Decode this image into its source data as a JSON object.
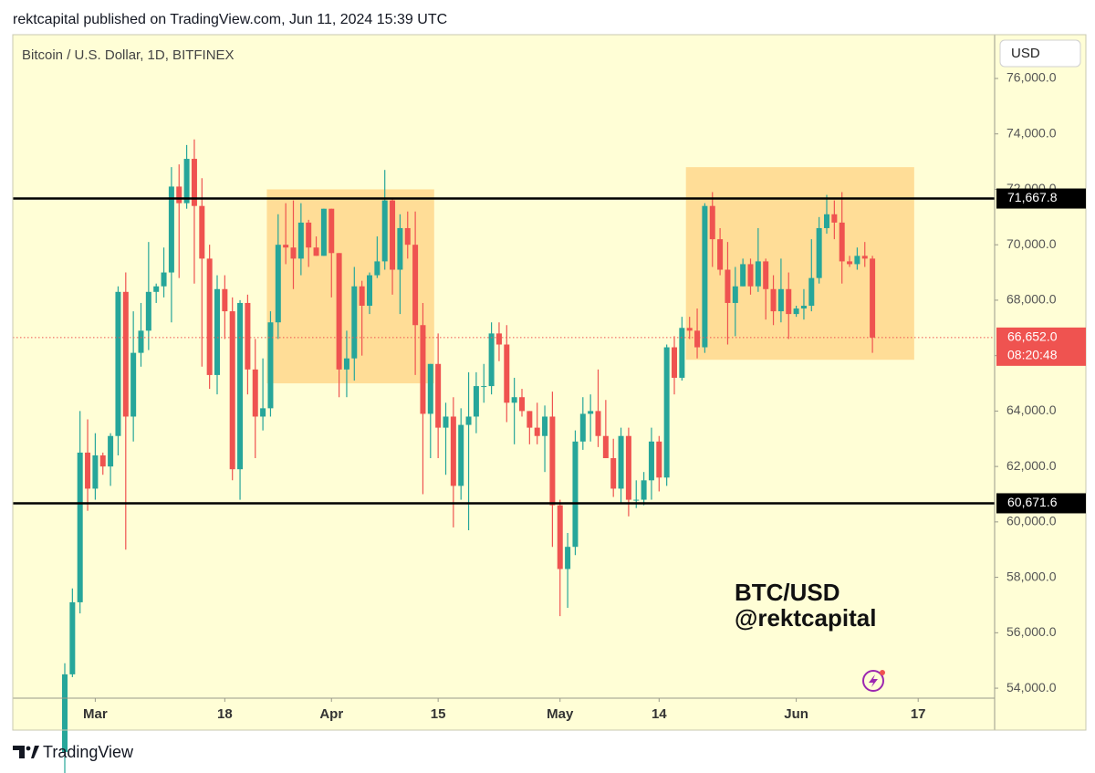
{
  "header": "rektcapital published on TradingView.com, Jun 11, 2024 15:39 UTC",
  "footer": "TradingView",
  "chart_data": {
    "type": "candlestick",
    "title": "Bitcoin / U.S. Dollar, 1D, BITFINEX",
    "currency": "USD",
    "watermark": [
      "BTC/USD",
      "@rektcapital"
    ],
    "up_color": "#26a69a",
    "down_color": "#ef5350",
    "x": [
      "02-26",
      "02-27",
      "02-28",
      "02-29",
      "03-01",
      "03-02",
      "03-03",
      "03-04",
      "03-05",
      "03-06",
      "03-07",
      "03-08",
      "03-09",
      "03-10",
      "03-11",
      "03-12",
      "03-13",
      "03-14",
      "03-15",
      "03-16",
      "03-17",
      "03-18",
      "03-19",
      "03-20",
      "03-21",
      "03-22",
      "03-23",
      "03-24",
      "03-25",
      "03-26",
      "03-27",
      "03-28",
      "03-29",
      "03-30",
      "03-31",
      "04-01",
      "04-02",
      "04-03",
      "04-04",
      "04-05",
      "04-06",
      "04-07",
      "04-08",
      "04-09",
      "04-10",
      "04-11",
      "04-12",
      "04-13",
      "04-14",
      "04-15",
      "04-16",
      "04-17",
      "04-18",
      "04-19",
      "04-20",
      "04-21",
      "04-22",
      "04-23",
      "04-24",
      "04-25",
      "04-26",
      "04-27",
      "04-28",
      "04-29",
      "04-30",
      "05-01",
      "05-02",
      "05-03",
      "05-04",
      "05-05",
      "05-06",
      "05-07",
      "05-08",
      "05-09",
      "05-10",
      "05-11",
      "05-12",
      "05-13",
      "05-14",
      "05-15",
      "05-16",
      "05-17",
      "05-18",
      "05-19",
      "05-20",
      "05-21",
      "05-22",
      "05-23",
      "05-24",
      "05-25",
      "05-26",
      "05-27",
      "05-28",
      "05-29",
      "05-30",
      "05-31",
      "06-01",
      "06-02",
      "06-03",
      "06-04",
      "06-05",
      "06-06",
      "06-07",
      "06-08",
      "06-09",
      "06-10",
      "06-11"
    ],
    "open": [
      51700,
      54500,
      57100,
      62500,
      61200,
      62400,
      62000,
      63100,
      68300,
      63800,
      66100,
      66900,
      68300,
      68500,
      69000,
      72100,
      71500,
      73100,
      71400,
      69500,
      65300,
      68400,
      67600,
      61900,
      67900,
      65500,
      63800,
      64100,
      67200,
      70000,
      69900,
      69500,
      70800,
      69900,
      69600,
      71300,
      69700,
      65500,
      65900,
      68500,
      67800,
      68900,
      69400,
      71600,
      69100,
      70600,
      70000,
      67100,
      63900,
      65700,
      63400,
      63800,
      61300,
      63500,
      63800,
      64900,
      64900,
      66800,
      66400,
      64300,
      64500,
      64000,
      63400,
      63100,
      63800,
      60600,
      58300,
      59100,
      62900,
      63900,
      64000,
      63100,
      62300,
      61200,
      63100,
      60800,
      60800,
      61500,
      62900,
      61600,
      66300,
      65200,
      67000,
      66900,
      66300,
      71400,
      70200,
      69100,
      67900,
      68500,
      69300,
      68500,
      69400,
      68400,
      67600,
      68400,
      67500,
      67700,
      67800,
      68800,
      70600,
      71100,
      70800,
      69400,
      69300,
      69600,
      69500
    ],
    "high": [
      54900,
      57600,
      64000,
      63700,
      63200,
      62500,
      63200,
      68500,
      69000,
      67600,
      67900,
      70100,
      68600,
      69900,
      72800,
      72900,
      73600,
      73800,
      72400,
      70000,
      68900,
      68900,
      68100,
      68000,
      68200,
      66600,
      65900,
      67600,
      71100,
      71500,
      71600,
      71500,
      70900,
      70300,
      71300,
      71300,
      69700,
      66900,
      69200,
      68700,
      69000,
      70300,
      72700,
      71700,
      71100,
      71200,
      71200,
      67900,
      65700,
      66800,
      64300,
      64500,
      64100,
      65400,
      65400,
      65700,
      67200,
      67200,
      67100,
      65200,
      64800,
      64000,
      64300,
      64200,
      64700,
      60800,
      59600,
      63300,
      64500,
      64600,
      65500,
      64400,
      63000,
      63400,
      63400,
      61500,
      61800,
      63400,
      63100,
      66400,
      66700,
      67400,
      67400,
      67700,
      71500,
      71900,
      70600,
      70100,
      69200,
      69500,
      69500,
      70600,
      69500,
      68900,
      69500,
      69000,
      67800,
      68400,
      70200,
      71000,
      71800,
      71600,
      71900,
      69600,
      69900,
      70100,
      69600
    ],
    "low": [
      50900,
      54400,
      56700,
      60400,
      60800,
      61700,
      61300,
      62400,
      59000,
      62900,
      65600,
      66200,
      67900,
      68100,
      67200,
      68800,
      71300,
      68600,
      65600,
      64800,
      64600,
      66600,
      61500,
      60800,
      64600,
      62300,
      63300,
      63800,
      66600,
      69300,
      68400,
      68900,
      69200,
      69600,
      69600,
      68100,
      64500,
      64500,
      65100,
      66000,
      67500,
      68800,
      69100,
      68200,
      67500,
      69500,
      65300,
      61000,
      62300,
      62300,
      61700,
      59800,
      60800,
      59700,
      63200,
      64300,
      64600,
      65800,
      63600,
      62800,
      63800,
      62800,
      62800,
      61800,
      59100,
      56600,
      56900,
      58800,
      62600,
      62900,
      62700,
      62300,
      60900,
      60700,
      60200,
      60500,
      60600,
      60800,
      61100,
      61300,
      64600,
      65100,
      66600,
      65900,
      66100,
      69200,
      68900,
      66400,
      66700,
      68500,
      68200,
      68300,
      67300,
      67100,
      67200,
      66600,
      67400,
      67300,
      67600,
      68600,
      70400,
      70200,
      68600,
      69200,
      69100,
      69200,
      66100
    ],
    "close": [
      54500,
      57100,
      62500,
      61200,
      62400,
      62000,
      63100,
      68300,
      63800,
      66100,
      66900,
      68300,
      68500,
      69000,
      72100,
      71500,
      73100,
      71400,
      69500,
      65300,
      68400,
      67600,
      61900,
      67900,
      65500,
      63800,
      64100,
      67200,
      70000,
      69900,
      69500,
      70800,
      69900,
      69600,
      71300,
      69700,
      65500,
      65900,
      68500,
      67800,
      68900,
      69400,
      71600,
      69100,
      70600,
      70000,
      67100,
      63900,
      65700,
      63400,
      63800,
      61300,
      63500,
      63800,
      64900,
      64900,
      66800,
      66400,
      64300,
      64500,
      64000,
      63400,
      63100,
      63800,
      60600,
      58300,
      59100,
      62900,
      63900,
      64000,
      63100,
      62300,
      61200,
      63100,
      60800,
      60800,
      61500,
      62900,
      61600,
      66300,
      65200,
      67000,
      66900,
      66300,
      71400,
      70200,
      69100,
      67900,
      68500,
      69300,
      68500,
      69400,
      68400,
      67600,
      68400,
      67500,
      67700,
      67800,
      68800,
      70600,
      71100,
      70800,
      69400,
      69300,
      69600,
      69500,
      66652
    ],
    "ylim": [
      53640,
      77580
    ],
    "yticks": [
      {
        "value": 54000,
        "label": "54,000.0"
      },
      {
        "value": 56000,
        "label": "56,000.0"
      },
      {
        "value": 58000,
        "label": "58,000.0"
      },
      {
        "value": 60000,
        "label": "60,000.0"
      },
      {
        "value": 62000,
        "label": "62,000.0"
      },
      {
        "value": 64000,
        "label": "64,000.0"
      },
      {
        "value": 66000,
        "label": "66,000.0"
      },
      {
        "value": 68000,
        "label": "68,000.0"
      },
      {
        "value": 70000,
        "label": "70,000.0"
      },
      {
        "value": 72000,
        "label": "72,000.0"
      },
      {
        "value": 74000,
        "label": "74,000.0"
      },
      {
        "value": 76000,
        "label": "76,000.0"
      }
    ],
    "xticks": [
      {
        "value": "03-01",
        "label": "Mar"
      },
      {
        "value": "03-18",
        "label": "18"
      },
      {
        "value": "04-01",
        "label": "Apr"
      },
      {
        "value": "04-15",
        "label": "15"
      },
      {
        "value": "05-01",
        "label": "May"
      },
      {
        "value": "05-14",
        "label": "14"
      },
      {
        "value": "06-01",
        "label": "Jun"
      },
      {
        "value": "06-17",
        "label": "17"
      }
    ],
    "levels": [
      {
        "value": 71667.8,
        "label": "71,667.8"
      },
      {
        "value": 60671.6,
        "label": "60,671.6"
      }
    ],
    "boxes": [
      {
        "x": [
          "03-24",
          "04-14"
        ],
        "y": [
          65000,
          72000
        ],
        "color": "rgba(255,176,64,0.42)"
      },
      {
        "x": [
          "05-18",
          "06-16"
        ],
        "y": [
          65850,
          72800
        ],
        "color": "rgba(255,176,64,0.42)"
      }
    ],
    "last_price": {
      "value": 66652,
      "label": "66,652.0",
      "countdown": "08:20:48",
      "color": "#ef5350"
    }
  }
}
